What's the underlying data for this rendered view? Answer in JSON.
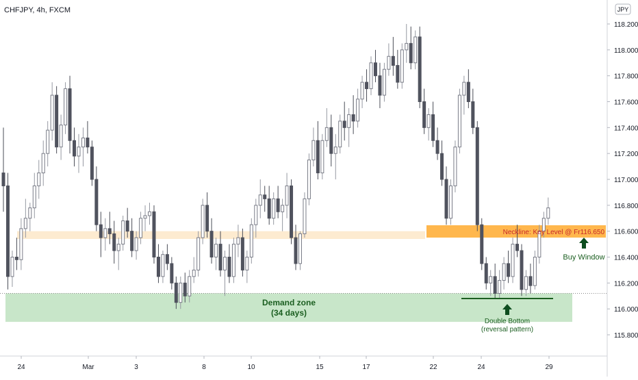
{
  "header": {
    "symbol_title": "CHFJPY, 4h, FXCM"
  },
  "currency_badge": "JPY",
  "chart_data": {
    "type": "candlestick",
    "title": "CHFJPY, 4h, FXCM",
    "y_unit": "JPY",
    "ylim": [
      115.68,
      118.28
    ],
    "y_ticks": [
      "118.200",
      "118.000",
      "117.800",
      "117.600",
      "117.400",
      "117.200",
      "117.000",
      "116.800",
      "116.600",
      "116.400",
      "116.200",
      "116.000",
      "115.800"
    ],
    "x_ticks": [
      "24",
      "Mar",
      "3",
      "8",
      "10",
      "15",
      "17",
      "22",
      "24",
      "29"
    ],
    "grid": false,
    "zones": [
      {
        "name": "Demand zone",
        "subtitle": "(34 days)",
        "y_low": 115.9,
        "y_high": 116.12,
        "color": "#c8e6c9",
        "text_color": "#1b5e20"
      },
      {
        "name": "Neckline: Key Level @ Fr116.650",
        "y_low": 116.55,
        "y_high": 116.65,
        "color": "#ffb74d",
        "text_color": "#c62828"
      },
      {
        "name": "prior level band",
        "y_low": 116.54,
        "y_high": 116.6,
        "color": "#fdebd0"
      }
    ],
    "reference_lines": [
      {
        "name": "dotted support",
        "y": 116.12,
        "style": "dotted"
      },
      {
        "name": "double bottom line",
        "y": 116.08,
        "style": "solid",
        "color": "#1b5e20"
      }
    ],
    "annotations": [
      {
        "text": "Buy Window",
        "arrow": "up",
        "color": "#1b5e20"
      },
      {
        "text": "Double Bottom",
        "text2": "(reversal pattern)",
        "arrow": "up",
        "color": "#1b5e20"
      }
    ],
    "candles": [
      [
        117.05,
        117.4,
        116.75,
        116.95
      ],
      [
        116.95,
        117.05,
        116.15,
        116.25
      ],
      [
        116.25,
        116.45,
        116.17,
        116.4
      ],
      [
        116.4,
        116.55,
        116.3,
        116.38
      ],
      [
        116.38,
        116.7,
        116.3,
        116.62
      ],
      [
        116.62,
        116.85,
        116.55,
        116.7
      ],
      [
        116.7,
        116.82,
        116.6,
        116.78
      ],
      [
        116.78,
        117.05,
        116.7,
        116.95
      ],
      [
        116.95,
        117.15,
        116.85,
        117.05
      ],
      [
        117.05,
        117.3,
        116.95,
        117.2
      ],
      [
        117.2,
        117.45,
        117.1,
        117.38
      ],
      [
        117.38,
        117.75,
        117.3,
        117.65
      ],
      [
        117.65,
        117.72,
        117.2,
        117.25
      ],
      [
        117.25,
        117.5,
        117.15,
        117.42
      ],
      [
        117.42,
        117.75,
        117.35,
        117.7
      ],
      [
        117.7,
        117.8,
        117.2,
        117.3
      ],
      [
        117.3,
        117.4,
        117.1,
        117.18
      ],
      [
        117.18,
        117.35,
        117.05,
        117.25
      ],
      [
        117.25,
        117.4,
        117.1,
        117.32
      ],
      [
        117.32,
        117.45,
        117.2,
        117.25
      ],
      [
        117.25,
        117.3,
        116.95,
        117.0
      ],
      [
        117.0,
        117.1,
        116.6,
        116.65
      ],
      [
        116.65,
        116.75,
        116.4,
        116.55
      ],
      [
        116.55,
        116.7,
        116.45,
        116.62
      ],
      [
        116.62,
        116.75,
        116.5,
        116.58
      ],
      [
        116.58,
        116.68,
        116.35,
        116.45
      ],
      [
        116.45,
        116.55,
        116.3,
        116.5
      ],
      [
        116.5,
        116.72,
        116.45,
        116.68
      ],
      [
        116.68,
        116.78,
        116.55,
        116.6
      ],
      [
        116.6,
        116.7,
        116.4,
        116.45
      ],
      [
        116.45,
        116.6,
        116.38,
        116.55
      ],
      [
        116.55,
        116.75,
        116.5,
        116.7
      ],
      [
        116.7,
        116.8,
        116.6,
        116.72
      ],
      [
        116.72,
        116.82,
        116.65,
        116.75
      ],
      [
        116.75,
        116.8,
        116.35,
        116.4
      ],
      [
        116.4,
        116.5,
        116.2,
        116.25
      ],
      [
        116.25,
        116.45,
        116.2,
        116.42
      ],
      [
        116.42,
        116.5,
        116.3,
        116.35
      ],
      [
        116.35,
        116.4,
        116.15,
        116.2
      ],
      [
        116.2,
        116.25,
        116.0,
        116.05
      ],
      [
        116.05,
        116.25,
        116.0,
        116.2
      ],
      [
        116.2,
        116.28,
        116.05,
        116.1
      ],
      [
        116.1,
        116.3,
        116.05,
        116.25
      ],
      [
        116.25,
        116.4,
        116.2,
        116.3
      ],
      [
        116.3,
        116.6,
        116.25,
        116.55
      ],
      [
        116.55,
        116.85,
        116.5,
        116.8
      ],
      [
        116.8,
        116.9,
        116.55,
        116.6
      ],
      [
        116.6,
        116.7,
        116.35,
        116.4
      ],
      [
        116.4,
        116.55,
        116.3,
        116.5
      ],
      [
        116.5,
        116.6,
        116.25,
        116.3
      ],
      [
        116.3,
        116.45,
        116.1,
        116.4
      ],
      [
        116.4,
        116.5,
        116.2,
        116.25
      ],
      [
        116.25,
        116.55,
        116.2,
        116.5
      ],
      [
        116.5,
        116.65,
        116.4,
        116.55
      ],
      [
        116.55,
        116.62,
        116.25,
        116.3
      ],
      [
        116.3,
        116.45,
        116.2,
        116.4
      ],
      [
        116.4,
        116.7,
        116.35,
        116.65
      ],
      [
        116.65,
        116.85,
        116.55,
        116.8
      ],
      [
        116.8,
        117.0,
        116.7,
        116.88
      ],
      [
        116.88,
        116.95,
        116.75,
        116.85
      ],
      [
        116.85,
        116.95,
        116.65,
        116.7
      ],
      [
        116.7,
        116.9,
        116.65,
        116.85
      ],
      [
        116.85,
        116.95,
        116.7,
        116.75
      ],
      [
        116.75,
        116.85,
        116.6,
        116.8
      ],
      [
        116.8,
        117.05,
        116.7,
        116.95
      ],
      [
        116.95,
        117.0,
        116.5,
        116.55
      ],
      [
        116.55,
        116.65,
        116.3,
        116.35
      ],
      [
        116.35,
        116.6,
        116.3,
        116.58
      ],
      [
        116.58,
        116.9,
        116.55,
        116.85
      ],
      [
        116.85,
        117.2,
        116.8,
        117.15
      ],
      [
        117.15,
        117.4,
        117.1,
        117.3
      ],
      [
        117.3,
        117.45,
        117.0,
        117.05
      ],
      [
        117.05,
        117.35,
        117.0,
        117.3
      ],
      [
        117.3,
        117.55,
        117.25,
        117.4
      ],
      [
        117.4,
        117.5,
        117.1,
        117.2
      ],
      [
        117.2,
        117.35,
        117.0,
        117.25
      ],
      [
        117.25,
        117.5,
        117.2,
        117.45
      ],
      [
        117.45,
        117.6,
        117.3,
        117.4
      ],
      [
        117.4,
        117.55,
        117.25,
        117.5
      ],
      [
        117.5,
        117.65,
        117.35,
        117.45
      ],
      [
        117.45,
        117.7,
        117.4,
        117.62
      ],
      [
        117.62,
        117.8,
        117.55,
        117.75
      ],
      [
        117.75,
        117.85,
        117.6,
        117.7
      ],
      [
        117.7,
        117.95,
        117.65,
        117.9
      ],
      [
        117.9,
        118.0,
        117.75,
        117.8
      ],
      [
        117.8,
        117.9,
        117.55,
        117.65
      ],
      [
        117.65,
        117.9,
        117.6,
        117.85
      ],
      [
        117.85,
        118.05,
        117.8,
        117.95
      ],
      [
        117.95,
        118.1,
        117.8,
        117.88
      ],
      [
        117.88,
        118.0,
        117.7,
        117.75
      ],
      [
        117.75,
        118.05,
        117.7,
        118.0
      ],
      [
        118.0,
        118.2,
        117.9,
        118.05
      ],
      [
        118.05,
        118.18,
        117.85,
        117.9
      ],
      [
        117.9,
        118.15,
        117.85,
        118.1
      ],
      [
        118.1,
        118.18,
        117.55,
        117.6
      ],
      [
        117.6,
        117.7,
        117.35,
        117.4
      ],
      [
        117.4,
        117.55,
        117.3,
        117.5
      ],
      [
        117.5,
        117.6,
        117.25,
        117.3
      ],
      [
        117.3,
        117.4,
        117.15,
        117.2
      ],
      [
        117.2,
        117.3,
        116.95,
        117.0
      ],
      [
        117.0,
        117.1,
        116.65,
        116.7
      ],
      [
        116.7,
        117.0,
        116.65,
        116.95
      ],
      [
        116.95,
        117.3,
        116.9,
        117.25
      ],
      [
        117.25,
        117.7,
        117.2,
        117.65
      ],
      [
        117.65,
        117.8,
        117.5,
        117.75
      ],
      [
        117.75,
        117.85,
        117.55,
        117.6
      ],
      [
        117.6,
        117.7,
        117.35,
        117.4
      ],
      [
        117.4,
        117.45,
        116.6,
        116.65
      ],
      [
        116.65,
        116.7,
        116.3,
        116.35
      ],
      [
        116.35,
        116.4,
        116.15,
        116.2
      ],
      [
        116.2,
        116.3,
        116.1,
        116.25
      ],
      [
        116.25,
        116.35,
        116.08,
        116.12
      ],
      [
        116.12,
        116.3,
        116.08,
        116.22
      ],
      [
        116.22,
        116.4,
        116.15,
        116.35
      ],
      [
        116.35,
        116.45,
        116.2,
        116.25
      ],
      [
        116.25,
        116.55,
        116.2,
        116.5
      ],
      [
        116.5,
        116.65,
        116.4,
        116.45
      ],
      [
        116.45,
        116.5,
        116.1,
        116.15
      ],
      [
        116.15,
        116.3,
        116.1,
        116.25
      ],
      [
        116.25,
        116.35,
        116.12,
        116.18
      ],
      [
        116.18,
        116.45,
        116.15,
        116.4
      ],
      [
        116.4,
        116.65,
        116.35,
        116.6
      ],
      [
        116.6,
        116.75,
        116.55,
        116.7
      ],
      [
        116.7,
        116.86,
        116.65,
        116.78
      ]
    ]
  }
}
